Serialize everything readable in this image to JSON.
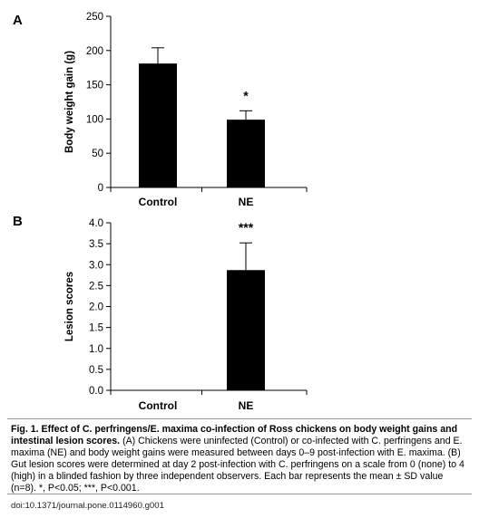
{
  "chart_data": [
    {
      "panel": "A",
      "type": "bar",
      "categories": [
        "Control",
        "NE"
      ],
      "values": [
        181,
        99
      ],
      "errors": [
        23,
        13
      ],
      "annotations": [
        "",
        "*"
      ],
      "ylabel": "Body weight gain (g)",
      "ylim": [
        0,
        250
      ],
      "yticks": [
        "0",
        "50",
        "100",
        "150",
        "200",
        "250"
      ],
      "bar_color": "#000000",
      "grid": false
    },
    {
      "panel": "B",
      "type": "bar",
      "categories": [
        "Control",
        "NE"
      ],
      "values": [
        0.0,
        2.87
      ],
      "errors": [
        0,
        0.65
      ],
      "annotations": [
        "",
        "***"
      ],
      "ylabel": "Lesion scores",
      "ylim": [
        0,
        4
      ],
      "yticks": [
        "0.0",
        "0.5",
        "1.0",
        "1.5",
        "2.0",
        "2.5",
        "3.0",
        "3.5",
        "4.0"
      ],
      "bar_color": "#000000",
      "grid": false
    }
  ],
  "caption": {
    "title": "Fig. 1. Effect of C. perfringens/E. maxima co-infection of Ross chickens on body weight gains and intestinal lesion scores.",
    "body": "(A) Chickens were uninfected (Control) or co-infected with C. perfringens and E. maxima (NE) and body weight gains were measured between days 0–9 post-infection with E. maxima. (B) Gut lesion scores were determined at day 2 post-infection with C. perfringens on a scale from 0 (none) to 4 (high) in a blinded fashion by three independent observers. Each bar represents the mean ± SD value (n=8). *, P<0.05; ***, P<0.001."
  },
  "doi": "doi:10.1371/journal.pone.0114960.g001"
}
